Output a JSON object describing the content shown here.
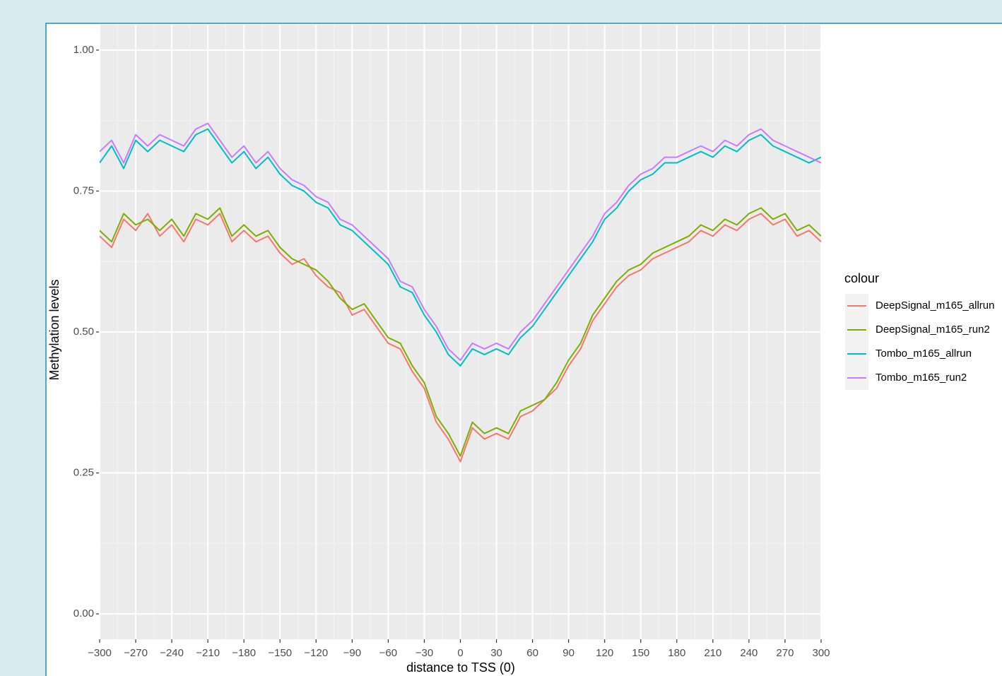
{
  "chart_data": {
    "type": "line",
    "xlabel": "distance to TSS (0)",
    "ylabel": "Methylation levels",
    "legend_title": "colour",
    "legend": "right",
    "grid": true,
    "xlim": [
      -300,
      300
    ],
    "ylim": [
      -0.045,
      1.045
    ],
    "xticks": [
      {
        "value": -300,
        "label": "−300"
      },
      {
        "value": -270,
        "label": "−270"
      },
      {
        "value": -240,
        "label": "−240"
      },
      {
        "value": -210,
        "label": "−210"
      },
      {
        "value": -180,
        "label": "−180"
      },
      {
        "value": -150,
        "label": "−150"
      },
      {
        "value": -120,
        "label": "−120"
      },
      {
        "value": -90,
        "label": "−90"
      },
      {
        "value": -60,
        "label": "−60"
      },
      {
        "value": -30,
        "label": "−30"
      },
      0,
      30,
      60,
      90,
      120,
      150,
      180,
      210,
      240,
      270,
      300
    ],
    "yticks": [
      {
        "value": 0,
        "label": "0.00"
      },
      {
        "value": 0.25,
        "label": "0.25"
      },
      {
        "value": 0.5,
        "label": "0.50"
      },
      {
        "value": 0.75,
        "label": "0.75"
      },
      {
        "value": 1,
        "label": "1.00"
      }
    ],
    "x": [
      -300,
      -290,
      -280,
      -270,
      -260,
      -250,
      -240,
      -230,
      -220,
      -210,
      -200,
      -190,
      -180,
      -170,
      -160,
      -150,
      -140,
      -130,
      -120,
      -110,
      -100,
      -90,
      -80,
      -70,
      -60,
      -50,
      -40,
      -30,
      -20,
      -10,
      0,
      10,
      20,
      30,
      40,
      50,
      60,
      70,
      80,
      90,
      100,
      110,
      120,
      130,
      140,
      150,
      160,
      170,
      180,
      190,
      200,
      210,
      220,
      230,
      240,
      250,
      260,
      270,
      280,
      290,
      300
    ],
    "series": [
      {
        "name": "DeepSignal_m165_allrun",
        "color": "#F8766D",
        "values": [
          0.67,
          0.65,
          0.7,
          0.68,
          0.71,
          0.67,
          0.69,
          0.66,
          0.7,
          0.69,
          0.71,
          0.66,
          0.68,
          0.66,
          0.67,
          0.64,
          0.62,
          0.63,
          0.6,
          0.58,
          0.57,
          0.53,
          0.54,
          0.51,
          0.48,
          0.47,
          0.43,
          0.4,
          0.34,
          0.31,
          0.27,
          0.33,
          0.31,
          0.32,
          0.31,
          0.35,
          0.36,
          0.38,
          0.4,
          0.44,
          0.47,
          0.52,
          0.55,
          0.58,
          0.6,
          0.61,
          0.63,
          0.64,
          0.65,
          0.66,
          0.68,
          0.67,
          0.69,
          0.68,
          0.7,
          0.71,
          0.69,
          0.7,
          0.67,
          0.68,
          0.66
        ]
      },
      {
        "name": "DeepSignal_m165_run2",
        "color": "#7CAE00",
        "values": [
          0.68,
          0.66,
          0.71,
          0.69,
          0.7,
          0.68,
          0.7,
          0.67,
          0.71,
          0.7,
          0.72,
          0.67,
          0.69,
          0.67,
          0.68,
          0.65,
          0.63,
          0.62,
          0.61,
          0.59,
          0.56,
          0.54,
          0.55,
          0.52,
          0.49,
          0.48,
          0.44,
          0.41,
          0.35,
          0.32,
          0.28,
          0.34,
          0.32,
          0.33,
          0.32,
          0.36,
          0.37,
          0.38,
          0.41,
          0.45,
          0.48,
          0.53,
          0.56,
          0.59,
          0.61,
          0.62,
          0.64,
          0.65,
          0.66,
          0.67,
          0.69,
          0.68,
          0.7,
          0.69,
          0.71,
          0.72,
          0.7,
          0.71,
          0.68,
          0.69,
          0.67
        ]
      },
      {
        "name": "Tombo_m165_allrun",
        "color": "#00BFC4",
        "values": [
          0.8,
          0.83,
          0.79,
          0.84,
          0.82,
          0.84,
          0.83,
          0.82,
          0.85,
          0.86,
          0.83,
          0.8,
          0.82,
          0.79,
          0.81,
          0.78,
          0.76,
          0.75,
          0.73,
          0.72,
          0.69,
          0.68,
          0.66,
          0.64,
          0.62,
          0.58,
          0.57,
          0.53,
          0.5,
          0.46,
          0.44,
          0.47,
          0.46,
          0.47,
          0.46,
          0.49,
          0.51,
          0.54,
          0.57,
          0.6,
          0.63,
          0.66,
          0.7,
          0.72,
          0.75,
          0.77,
          0.78,
          0.8,
          0.8,
          0.81,
          0.82,
          0.81,
          0.83,
          0.82,
          0.84,
          0.85,
          0.83,
          0.82,
          0.81,
          0.8,
          0.81
        ]
      },
      {
        "name": "Tombo_m165_run2",
        "color": "#C77CFF",
        "values": [
          0.82,
          0.84,
          0.8,
          0.85,
          0.83,
          0.85,
          0.84,
          0.83,
          0.86,
          0.87,
          0.84,
          0.81,
          0.83,
          0.8,
          0.82,
          0.79,
          0.77,
          0.76,
          0.74,
          0.73,
          0.7,
          0.69,
          0.67,
          0.65,
          0.63,
          0.59,
          0.58,
          0.54,
          0.51,
          0.47,
          0.45,
          0.48,
          0.47,
          0.48,
          0.47,
          0.5,
          0.52,
          0.55,
          0.58,
          0.61,
          0.64,
          0.67,
          0.71,
          0.73,
          0.76,
          0.78,
          0.79,
          0.81,
          0.81,
          0.82,
          0.83,
          0.82,
          0.84,
          0.83,
          0.85,
          0.86,
          0.84,
          0.83,
          0.82,
          0.81,
          0.8
        ]
      }
    ]
  }
}
